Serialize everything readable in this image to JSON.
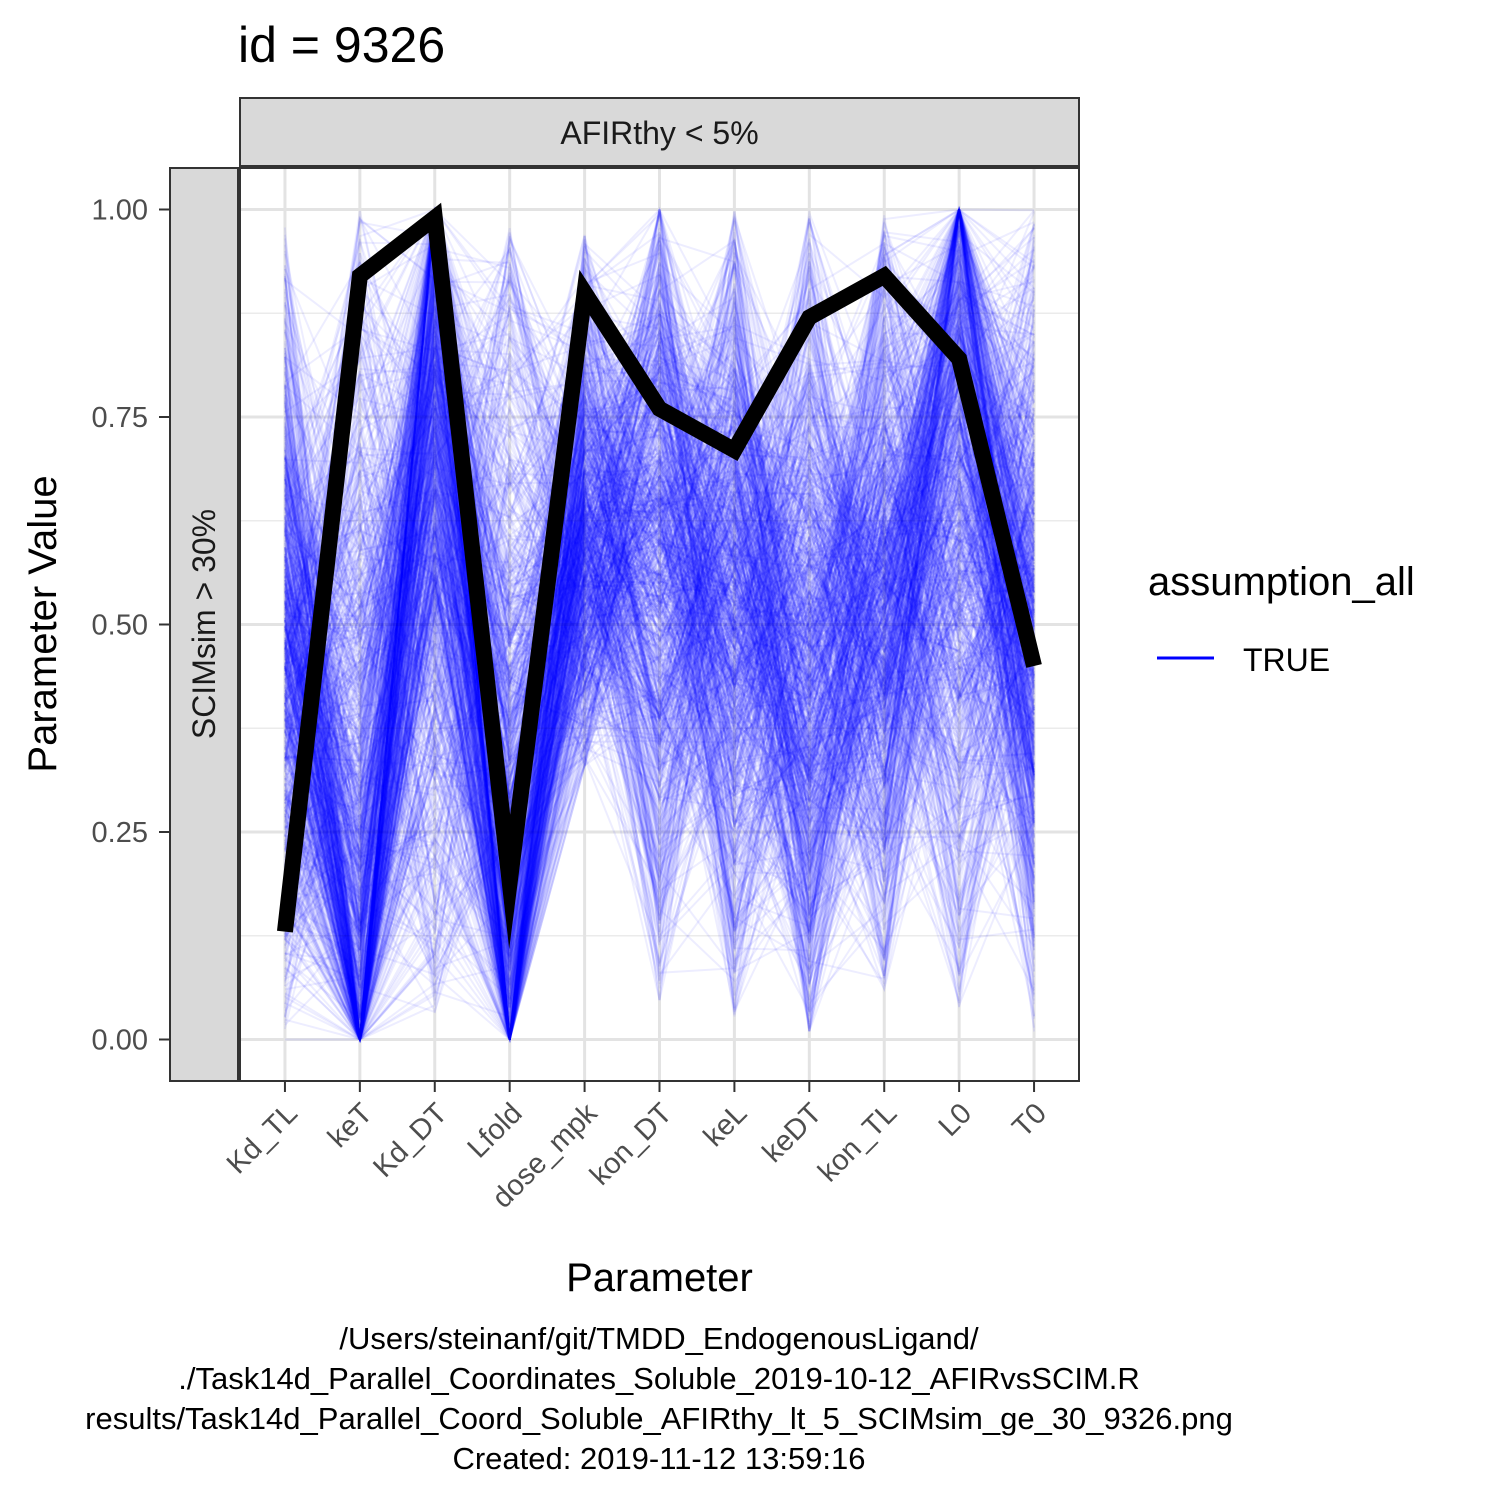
{
  "title": "id = 9326",
  "strips": {
    "top": "AFIRthy < 5%",
    "left": "SCIMsim > 30%"
  },
  "legend": {
    "title": "assumption_all",
    "items": [
      {
        "label": "TRUE",
        "color": "#0000ff"
      }
    ]
  },
  "caption": [
    "/Users/steinanf/git/TMDD_EndogenousLigand/",
    "./Task14d_Parallel_Coordinates_Soluble_2019-10-12_AFIRvsSCIM.R",
    "results/Task14d_Parallel_Coord_Soluble_AFIRthy_lt_5_SCIMsim_ge_30_9326.png",
    "Created: 2019-11-12 13:59:16"
  ],
  "chart_data": {
    "type": "line",
    "title": "id = 9326",
    "xlabel": "Parameter",
    "ylabel": "Parameter Value",
    "categories": [
      "Kd_TL",
      "keT",
      "Kd_DT",
      "Lfold",
      "dose_mpk",
      "kon_DT",
      "keL",
      "keDT",
      "kon_TL",
      "L0",
      "T0"
    ],
    "ylim": [
      -0.05,
      1.05
    ],
    "yticks": [
      0.0,
      0.25,
      0.5,
      0.75,
      1.0
    ],
    "ytick_labels": [
      "0.00",
      "0.25",
      "0.50",
      "0.75",
      "1.00"
    ],
    "grid": true,
    "legend_position": "right",
    "series": [
      {
        "values": [
          0.13,
          0.92,
          0.99,
          0.19,
          0.9,
          0.76,
          0.71,
          0.87,
          0.92,
          0.82,
          0.45
        ],
        "color": "#000000",
        "style": "bold"
      }
    ],
    "background_series": {
      "name": "TRUE",
      "color": "#0000ff",
      "opacity": 0.07,
      "description_count": 900,
      "axis_distributions": [
        {
          "min": 0.0,
          "max": 0.98,
          "center": 0.45
        },
        {
          "min": 0.0,
          "max": 1.0,
          "center": 0.15
        },
        {
          "min": 0.03,
          "max": 1.0,
          "center": 0.75
        },
        {
          "min": 0.0,
          "max": 0.98,
          "center": 0.2
        },
        {
          "min": 0.33,
          "max": 0.97,
          "center": 0.6
        },
        {
          "min": 0.02,
          "max": 1.0,
          "center": 0.6
        },
        {
          "min": 0.01,
          "max": 1.0,
          "center": 0.55
        },
        {
          "min": 0.01,
          "max": 1.0,
          "center": 0.45
        },
        {
          "min": 0.05,
          "max": 1.0,
          "center": 0.55
        },
        {
          "min": 0.03,
          "max": 1.0,
          "center": 0.75
        },
        {
          "min": 0.0,
          "max": 1.0,
          "center": 0.5
        }
      ]
    }
  }
}
